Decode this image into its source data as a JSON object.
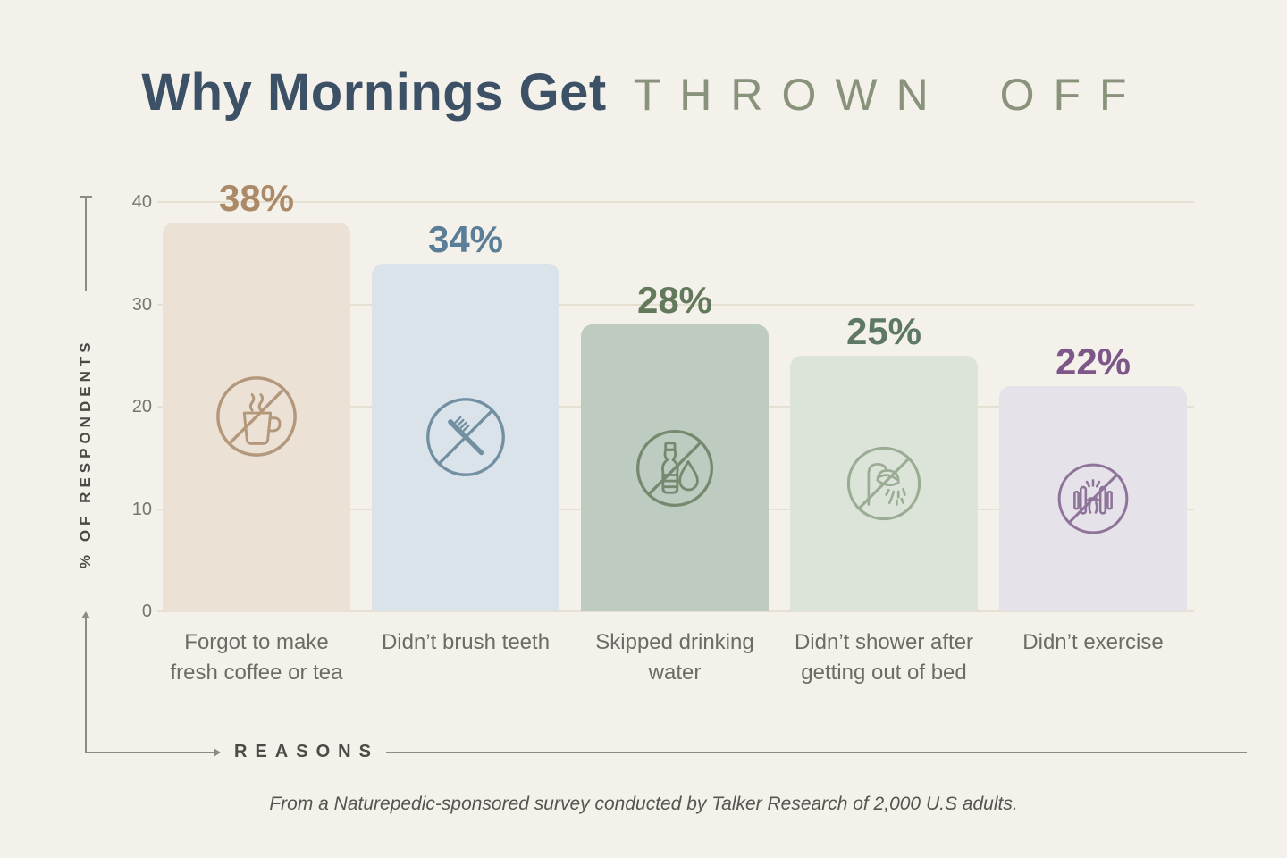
{
  "title": {
    "main": "Why Mornings Get",
    "accent": "THROWN OFF"
  },
  "y_axis": {
    "label": "% OF RESPONDENTS"
  },
  "x_axis": {
    "label": "REASONS"
  },
  "footer": "From a Naturepedic-sponsored survey conducted by Talker Research of 2,000 U.S adults.",
  "colors": {
    "background": "#F4F1EA",
    "title_main": "#3D5166",
    "title_accent": "#89937C",
    "grid": "#E5E0D2",
    "axis_line": "#8C8B85",
    "axis_text": "#4A4A46",
    "tick_text": "#76756F",
    "cat_text": "#6C6B66",
    "footer_text": "#555450"
  },
  "chart_data": {
    "type": "bar",
    "title": "Why Mornings Get THROWN OFF",
    "xlabel": "REASONS",
    "ylabel": "% OF RESPONDENTS",
    "ylim": [
      0,
      40
    ],
    "yticks": [
      0,
      10,
      20,
      30,
      40
    ],
    "grid": true,
    "legend": "none",
    "categories": [
      "Forgot to make fresh coffee or tea",
      "Didn’t brush teeth",
      "Skipped drinking water",
      "Didn’t shower after getting out of bed",
      "Didn’t exercise"
    ],
    "values": [
      38,
      34,
      28,
      25,
      22
    ],
    "bars": [
      {
        "category": "Forgot to make fresh coffee or tea",
        "value": 38,
        "value_label": "38%",
        "icon": "no-coffee-icon",
        "bar_color": "#EBE1D5",
        "value_color": "#AB8A68",
        "icon_color": "#B4987C"
      },
      {
        "category": "Didn’t brush teeth",
        "value": 34,
        "value_label": "34%",
        "icon": "no-toothbrush-icon",
        "bar_color": "#DAE3EA",
        "value_color": "#5B7E98",
        "icon_color": "#7390A3"
      },
      {
        "category": "Skipped drinking water",
        "value": 28,
        "value_label": "28%",
        "icon": "no-water-icon",
        "bar_color": "#BECBC0",
        "value_color": "#62795B",
        "icon_color": "#75896F"
      },
      {
        "category": "Didn’t shower after getting out of bed",
        "value": 25,
        "value_label": "25%",
        "icon": "no-shower-icon",
        "bar_color": "#DCE4D9",
        "value_color": "#5E7963",
        "icon_color": "#9BAC95"
      },
      {
        "category": "Didn’t exercise",
        "value": 22,
        "value_label": "22%",
        "icon": "no-exercise-icon",
        "bar_color": "#E5E2EA",
        "value_color": "#7D5788",
        "icon_color": "#8F7499"
      }
    ]
  }
}
